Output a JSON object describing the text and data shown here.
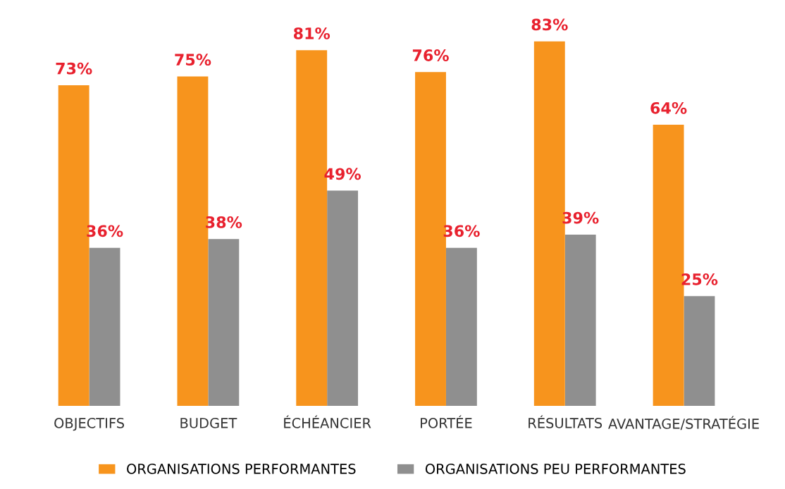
{
  "chart_data": {
    "type": "bar",
    "categories": [
      "OBJECTIFS",
      "BUDGET",
      "ÉCHÉANCIER",
      "PORTÉE",
      "RÉSULTATS",
      "AVANTAGE/STRATÉGIE"
    ],
    "series": [
      {
        "name": "ORGANISATIONS PERFORMANTES",
        "color": "#f7941d",
        "values": [
          73,
          75,
          81,
          76,
          83,
          64
        ],
        "value_labels": [
          "73%",
          "75%",
          "81%",
          "76%",
          "83%",
          "64%"
        ]
      },
      {
        "name": "ORGANISATIONS PEU PERFORMANTES",
        "color": "#8f8f8f",
        "values": [
          36,
          38,
          49,
          36,
          39,
          25
        ],
        "value_labels": [
          "36%",
          "38%",
          "49%",
          "36%",
          "39%",
          "25%"
        ]
      }
    ],
    "legend": "bottom",
    "grid": false
  }
}
